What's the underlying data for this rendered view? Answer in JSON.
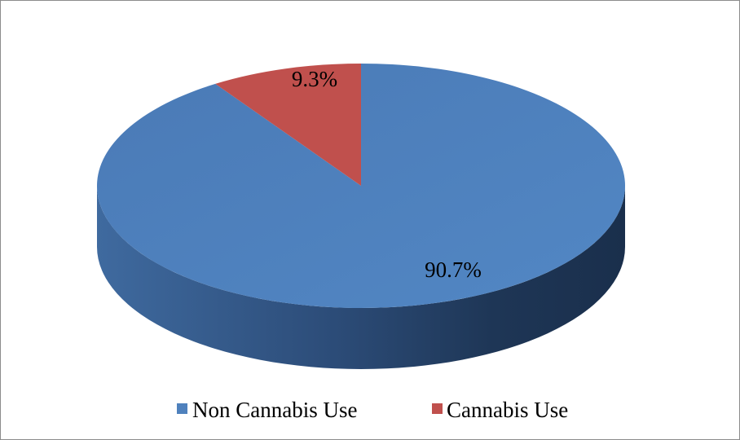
{
  "chart_data": {
    "type": "pie",
    "style": "3d",
    "title": "",
    "slices": [
      {
        "name": "Non Cannabis Use",
        "value": 90.7,
        "label": "90.7%",
        "color": "#4F81BD"
      },
      {
        "name": "Cannabis Use",
        "value": 9.3,
        "label": "9.3%",
        "color": "#C0504D"
      }
    ],
    "legend": {
      "position": "bottom",
      "items": [
        "Non Cannabis Use",
        "Cannabis Use"
      ]
    }
  }
}
